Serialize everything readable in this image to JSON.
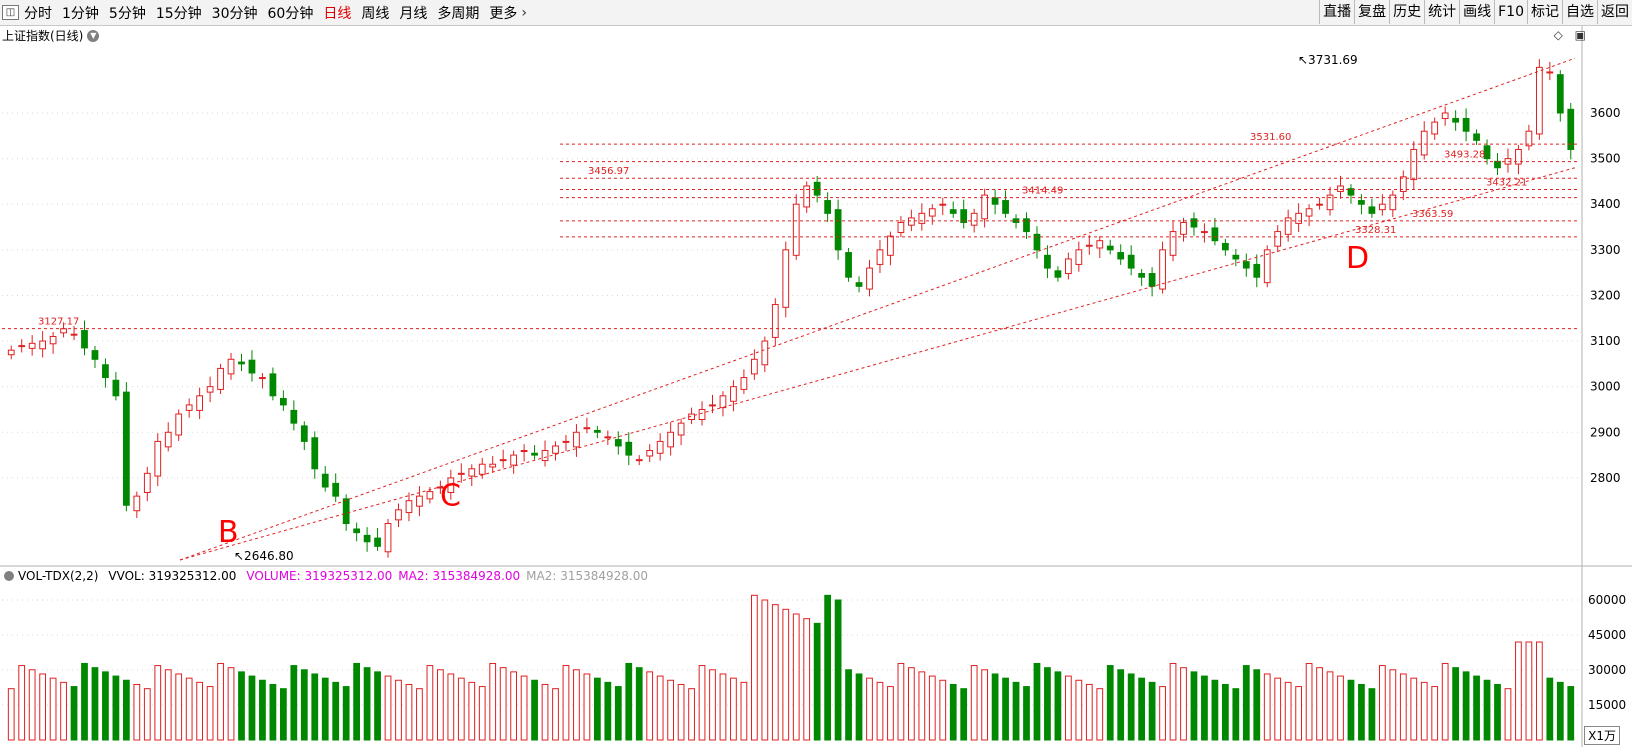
{
  "toolbar": {
    "menu_icon": "menu-icon",
    "periods": [
      "分时",
      "1分钟",
      "5分钟",
      "15分钟",
      "30分钟",
      "60分钟",
      "日线",
      "周线",
      "月线",
      "多周期",
      "更多"
    ],
    "active_period": "日线",
    "right_buttons": [
      "直播",
      "复盘",
      "历史",
      "统计",
      "画线",
      "F10",
      "标记",
      "自选",
      "返回"
    ]
  },
  "chart_title": "上证指数(日线)",
  "volume_header": {
    "indicator": "VOL-TDX(2,2)",
    "vvol": "VVOL: 319325312.00",
    "volume": "VOLUME: 319325312.00",
    "ma2": "MA2: 315384928.00",
    "ma2_faded": "MA2: 315384928.00"
  },
  "unit_label": "X1万",
  "annotations": {
    "high": "3731.69",
    "low": "2646.80",
    "marks": [
      "3127.17",
      "3456.97",
      "3414.49",
      "3531.60",
      "3493.28",
      "3432.21",
      "3363.59",
      "3328.31"
    ],
    "letters": [
      "B",
      "C",
      "D"
    ]
  },
  "colors": {
    "up": "#e02020",
    "down": "#008800",
    "line": "#e02020",
    "ma": "#c08000"
  },
  "chart_data": [
    {
      "type": "candlestick",
      "title": "上证指数(日线)",
      "ylabel_ticks": [
        2800,
        2900,
        3000,
        3100,
        3200,
        3300,
        3400,
        3500,
        3600
      ],
      "ylim": [
        2620,
        3760
      ],
      "candles": 150,
      "key_points": [
        {
          "label": "3127.17",
          "value": 3127.17
        },
        {
          "label": "2646.80",
          "value": 2646.8
        },
        {
          "label": "3456.97",
          "value": 3456.97
        },
        {
          "label": "3731.69",
          "value": 3731.69
        },
        {
          "label": "3328.31",
          "value": 3328.31
        }
      ],
      "horizontal_lines": [
        3127.17,
        3456.97,
        3531.6,
        3493.28,
        3432.21,
        3414.49,
        3363.59,
        3328.31
      ],
      "series_close": [
        3080,
        3090,
        3095,
        3100,
        3110,
        3127,
        3115,
        3085,
        3060,
        3020,
        2980,
        2740,
        2760,
        2810,
        2880,
        2900,
        2940,
        2960,
        2980,
        3000,
        3040,
        3060,
        3050,
        3030,
        3020,
        2980,
        2960,
        2920,
        2880,
        2820,
        2780,
        2760,
        2700,
        2680,
        2660,
        2650,
        2700,
        2730,
        2750,
        2760,
        2770,
        2780,
        2800,
        2810,
        2820,
        2830,
        2830,
        2840,
        2850,
        2860,
        2850,
        2860,
        2870,
        2880,
        2900,
        2910,
        2900,
        2890,
        2870,
        2850,
        2840,
        2860,
        2880,
        2900,
        2920,
        2940,
        2950,
        2960,
        2980,
        3000,
        3020,
        3060,
        3100,
        3180,
        3300,
        3400,
        3440,
        3420,
        3380,
        3300,
        3240,
        3220,
        3260,
        3300,
        3330,
        3360,
        3370,
        3380,
        3390,
        3400,
        3380,
        3360,
        3380,
        3420,
        3400,
        3380,
        3360,
        3340,
        3300,
        3260,
        3240,
        3280,
        3300,
        3310,
        3320,
        3300,
        3280,
        3260,
        3240,
        3220,
        3300,
        3340,
        3360,
        3350,
        3340,
        3320,
        3300,
        3280,
        3260,
        3240,
        3300,
        3340,
        3370,
        3380,
        3390,
        3400,
        3420,
        3440,
        3420,
        3400,
        3380,
        3400,
        3420,
        3460,
        3520,
        3560,
        3580,
        3600,
        3580,
        3560,
        3540,
        3500,
        3480,
        3500,
        3520,
        3560,
        3700,
        3690,
        3600,
        3520
      ]
    },
    {
      "type": "bar",
      "title": "VOL-TDX(2,2)",
      "ylabel_ticks": [
        15000,
        30000,
        45000,
        60000
      ],
      "ylim": [
        0,
        66000
      ],
      "ma2_value": 315384928,
      "last_volume": 319325312
    }
  ]
}
